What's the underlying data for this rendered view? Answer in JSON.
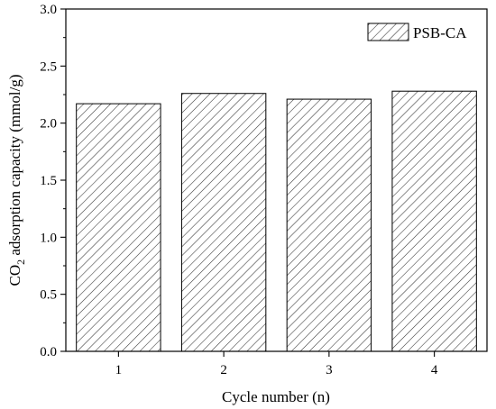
{
  "chart_data": {
    "type": "bar",
    "categories": [
      "1",
      "2",
      "3",
      "4"
    ],
    "series": [
      {
        "name": "PSB-CA",
        "values": [
          2.17,
          2.26,
          2.21,
          2.28
        ]
      }
    ],
    "xlabel": "Cycle number (n)",
    "ylabel": {
      "prefix": "CO",
      "subscript": "2",
      "suffix": " adsorption capacity (mmol/g)"
    },
    "ylim": [
      0,
      3.0
    ],
    "yticks": [
      "0.0",
      "0.5",
      "1.0",
      "1.5",
      "2.0",
      "2.5",
      "3.0"
    ],
    "grid": false,
    "legend_position": "top-right",
    "bar_fill": "hatched"
  }
}
